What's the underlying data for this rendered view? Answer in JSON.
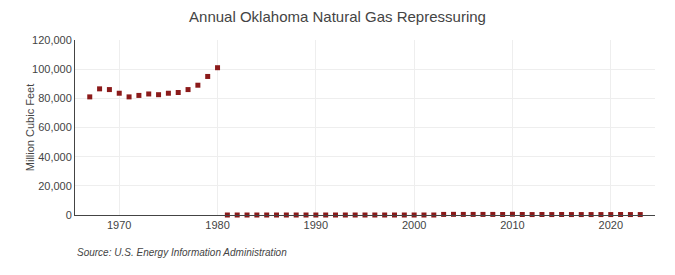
{
  "chart_data": {
    "type": "scatter",
    "title": "Annual Oklahoma Natural Gas Repressuring",
    "ylabel": "Million Cubic Feet",
    "annotations": [
      "Source: U.S. Energy Information Administration"
    ],
    "x": [
      1967,
      1968,
      1969,
      1970,
      1971,
      1972,
      1973,
      1974,
      1975,
      1976,
      1977,
      1978,
      1979,
      1980,
      1981,
      1982,
      1983,
      1984,
      1985,
      1986,
      1987,
      1988,
      1989,
      1990,
      1991,
      1992,
      1993,
      1994,
      1995,
      1996,
      1997,
      1998,
      1999,
      2000,
      2001,
      2002,
      2003,
      2004,
      2005,
      2006,
      2007,
      2008,
      2009,
      2010,
      2011,
      2012,
      2013,
      2014,
      2015,
      2016,
      2017,
      2018,
      2019,
      2020,
      2021,
      2022,
      2023
    ],
    "values": [
      81000,
      86500,
      86000,
      83500,
      81000,
      82000,
      83000,
      82500,
      83500,
      84000,
      86000,
      89000,
      95000,
      101000,
      0,
      0,
      0,
      0,
      0,
      0,
      0,
      0,
      0,
      0,
      0,
      0,
      0,
      0,
      0,
      0,
      0,
      0,
      0,
      0,
      0,
      0,
      400,
      450,
      400,
      400,
      400,
      400,
      350,
      500,
      350,
      300,
      350,
      300,
      350,
      300,
      300,
      300,
      300,
      300,
      350,
      300,
      300
    ],
    "color": "#8b1a1a",
    "marker": "square",
    "xlim": [
      1965.5,
      2024.5
    ],
    "xticks": [
      1970,
      1980,
      1990,
      2000,
      2010,
      2020
    ],
    "ylim": [
      0,
      120000
    ],
    "yticks": [
      0,
      {
        "value": 20000,
        "label": "20,000"
      },
      {
        "value": 40000,
        "label": "40,000"
      },
      {
        "value": 60000,
        "label": "60,000"
      },
      {
        "value": 80000,
        "label": "80,000"
      },
      {
        "value": 100000,
        "label": "100,000"
      },
      {
        "value": 120000,
        "label": "120,000"
      }
    ],
    "grid": true
  }
}
